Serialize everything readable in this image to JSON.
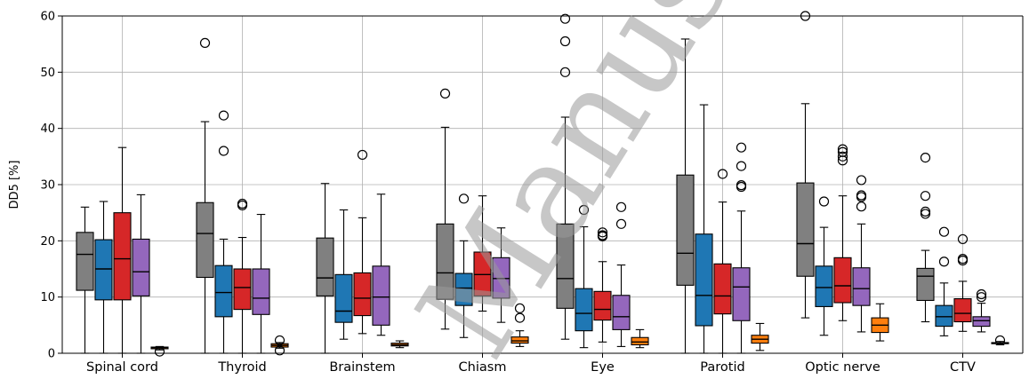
{
  "chart_data": {
    "type": "box",
    "ylabel": "DD5 [%]",
    "ylim": [
      0,
      60
    ],
    "yticks": [
      0,
      10,
      20,
      30,
      40,
      50,
      60
    ],
    "grid": true,
    "watermark": "Manus",
    "series_colors": [
      "#808080",
      "#1f77b4",
      "#d62728",
      "#9467bd",
      "#ff7f0e"
    ],
    "categories": [
      "Spinal cord",
      "Thyroid",
      "Brainstem",
      "Chiasm",
      "Eye",
      "Parotid",
      "Optic nerve",
      "CTV"
    ],
    "boxes": [
      [
        {
          "whislo": 0,
          "q1": 11.2,
          "med": 17.6,
          "q3": 21.5,
          "whishi": 26.0,
          "fliers": []
        },
        {
          "whislo": 0,
          "q1": 9.5,
          "med": 15.0,
          "q3": 20.2,
          "whishi": 27.0,
          "fliers": []
        },
        {
          "whislo": 0,
          "q1": 9.5,
          "med": 16.8,
          "q3": 25.0,
          "whishi": 36.6,
          "fliers": []
        },
        {
          "whislo": 0,
          "q1": 10.2,
          "med": 14.5,
          "q3": 20.3,
          "whishi": 28.2,
          "fliers": []
        },
        {
          "whislo": 0.6,
          "q1": 0.8,
          "med": 1.0,
          "q3": 1.1,
          "whishi": 1.2,
          "fliers": [
            0.3
          ]
        }
      ],
      [
        {
          "whislo": 0,
          "q1": 13.5,
          "med": 21.3,
          "q3": 26.8,
          "whishi": 41.2,
          "fliers": [
            55.2
          ]
        },
        {
          "whislo": 0,
          "q1": 6.5,
          "med": 10.8,
          "q3": 15.6,
          "whishi": 20.3,
          "fliers": [
            36.0,
            42.3
          ]
        },
        {
          "whislo": 0,
          "q1": 7.8,
          "med": 11.7,
          "q3": 15.0,
          "whishi": 20.6,
          "fliers": [
            26.3,
            26.6
          ]
        },
        {
          "whislo": 0,
          "q1": 6.9,
          "med": 9.8,
          "q3": 15.0,
          "whishi": 24.7,
          "fliers": []
        },
        {
          "whislo": 0.9,
          "q1": 1.1,
          "med": 1.4,
          "q3": 1.7,
          "whishi": 1.9,
          "fliers": [
            2.3,
            0.5
          ]
        }
      ],
      [
        {
          "whislo": 0,
          "q1": 10.2,
          "med": 13.4,
          "q3": 20.5,
          "whishi": 30.2,
          "fliers": []
        },
        {
          "whislo": 2.5,
          "q1": 5.5,
          "med": 7.5,
          "q3": 14.0,
          "whishi": 25.5,
          "fliers": []
        },
        {
          "whislo": 3.5,
          "q1": 6.7,
          "med": 9.8,
          "q3": 14.3,
          "whishi": 24.1,
          "fliers": [
            35.3
          ]
        },
        {
          "whislo": 3.2,
          "q1": 5.0,
          "med": 10.0,
          "q3": 15.5,
          "whishi": 28.3,
          "fliers": []
        },
        {
          "whislo": 1.0,
          "q1": 1.3,
          "med": 1.5,
          "q3": 1.8,
          "whishi": 2.2,
          "fliers": []
        }
      ],
      [
        {
          "whislo": 4.3,
          "q1": 9.6,
          "med": 14.3,
          "q3": 23.0,
          "whishi": 40.2,
          "fliers": [
            46.2
          ]
        },
        {
          "whislo": 2.8,
          "q1": 8.5,
          "med": 11.6,
          "q3": 14.2,
          "whishi": 20.0,
          "fliers": [
            27.5
          ]
        },
        {
          "whislo": 7.5,
          "q1": 10.2,
          "med": 14.0,
          "q3": 18.0,
          "whishi": 28.0,
          "fliers": []
        },
        {
          "whislo": 5.5,
          "q1": 9.8,
          "med": 13.3,
          "q3": 17.0,
          "whishi": 22.3,
          "fliers": []
        },
        {
          "whislo": 1.2,
          "q1": 1.8,
          "med": 2.2,
          "q3": 2.9,
          "whishi": 4.0,
          "fliers": [
            6.3,
            8.0
          ]
        }
      ],
      [
        {
          "whislo": 2.5,
          "q1": 8.0,
          "med": 13.3,
          "q3": 23.0,
          "whishi": 42.0,
          "fliers": [
            50.0,
            55.5,
            59.5
          ]
        },
        {
          "whislo": 1.0,
          "q1": 4.0,
          "med": 7.1,
          "q3": 11.5,
          "whishi": 22.5,
          "fliers": [
            25.5
          ]
        },
        {
          "whislo": 2.0,
          "q1": 5.9,
          "med": 7.8,
          "q3": 11.0,
          "whishi": 16.3,
          "fliers": [
            20.8,
            21.0,
            21.5
          ]
        },
        {
          "whislo": 1.2,
          "q1": 4.2,
          "med": 6.5,
          "q3": 10.3,
          "whishi": 15.7,
          "fliers": [
            23.0,
            26.0
          ]
        },
        {
          "whislo": 1.0,
          "q1": 1.5,
          "med": 2.0,
          "q3": 2.8,
          "whishi": 4.2,
          "fliers": []
        }
      ],
      [
        {
          "whislo": 0,
          "q1": 12.1,
          "med": 17.8,
          "q3": 31.7,
          "whishi": 55.9,
          "fliers": []
        },
        {
          "whislo": 0,
          "q1": 4.9,
          "med": 10.3,
          "q3": 21.2,
          "whishi": 44.2,
          "fliers": []
        },
        {
          "whislo": 0,
          "q1": 7.0,
          "med": 10.2,
          "q3": 15.9,
          "whishi": 26.9,
          "fliers": [
            31.9
          ]
        },
        {
          "whislo": 0,
          "q1": 5.8,
          "med": 11.8,
          "q3": 15.2,
          "whishi": 25.3,
          "fliers": [
            29.6,
            29.9,
            33.3,
            36.6
          ]
        },
        {
          "whislo": 0.5,
          "q1": 1.8,
          "med": 2.5,
          "q3": 3.2,
          "whishi": 5.3,
          "fliers": []
        }
      ],
      [
        {
          "whislo": 6.3,
          "q1": 13.7,
          "med": 19.5,
          "q3": 30.3,
          "whishi": 44.4,
          "fliers": [
            60.0
          ]
        },
        {
          "whislo": 3.2,
          "q1": 8.3,
          "med": 11.7,
          "q3": 15.5,
          "whishi": 22.4,
          "fliers": [
            27.0
          ]
        },
        {
          "whislo": 5.8,
          "q1": 9.0,
          "med": 12.0,
          "q3": 17.0,
          "whishi": 28.0,
          "fliers": [
            34.3,
            35.0,
            35.8,
            36.3
          ]
        },
        {
          "whislo": 3.8,
          "q1": 8.5,
          "med": 11.5,
          "q3": 15.2,
          "whishi": 23.0,
          "fliers": [
            26.1,
            27.8,
            28.1,
            30.8
          ]
        },
        {
          "whislo": 2.2,
          "q1": 3.7,
          "med": 5.0,
          "q3": 6.3,
          "whishi": 8.8,
          "fliers": []
        }
      ],
      [
        {
          "whislo": 5.6,
          "q1": 9.4,
          "med": 13.7,
          "q3": 15.1,
          "whishi": 18.3,
          "fliers": [
            24.8,
            25.2,
            28.0,
            34.8
          ]
        },
        {
          "whislo": 3.1,
          "q1": 4.8,
          "med": 6.5,
          "q3": 8.5,
          "whishi": 12.5,
          "fliers": [
            16.3,
            21.6
          ]
        },
        {
          "whislo": 3.9,
          "q1": 5.6,
          "med": 7.1,
          "q3": 9.7,
          "whishi": 12.8,
          "fliers": [
            16.5,
            16.8,
            20.3
          ]
        },
        {
          "whislo": 3.8,
          "q1": 4.8,
          "med": 5.8,
          "q3": 6.5,
          "whishi": 8.9,
          "fliers": [
            10.0,
            10.5
          ]
        },
        {
          "whislo": 1.5,
          "q1": 1.7,
          "med": 1.8,
          "q3": 1.9,
          "whishi": 2.1,
          "fliers": [
            2.3
          ]
        }
      ]
    ]
  }
}
